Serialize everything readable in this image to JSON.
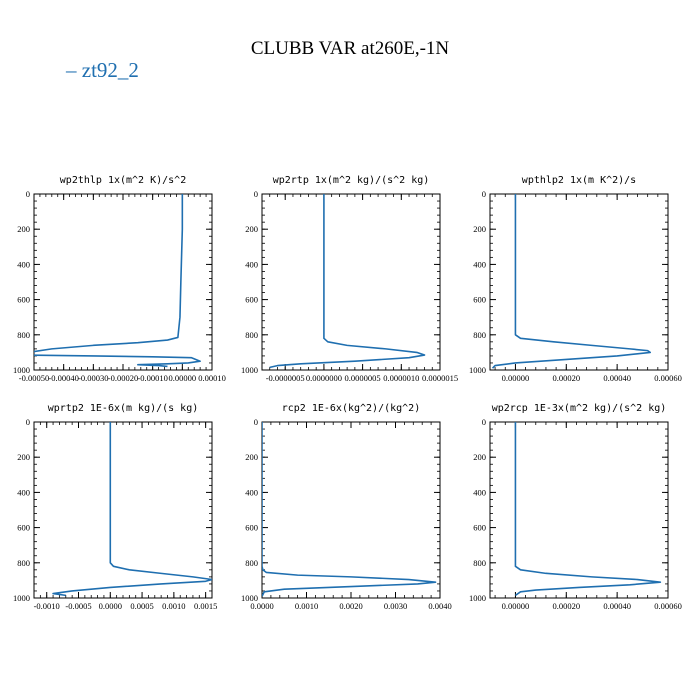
{
  "figure": {
    "title": "CLUBB VAR at260E,-1N",
    "legend": {
      "label": "zt92_2",
      "color": "#1f6fb0"
    },
    "line_color": "#1f6fb0"
  },
  "chart_data": [
    {
      "type": "line",
      "title": "wp2thlp  1x(m^2 K)/s^2",
      "xlim": [
        -0.0005,
        0.0001
      ],
      "ylim": [
        1000,
        0
      ],
      "xticks": [
        -0.0005,
        -0.0004,
        -0.0003,
        -0.0002,
        -0.0001,
        0.0,
        0.0001
      ],
      "xticklabels": [
        "-0.00050",
        "-0.00040",
        "-0.00030",
        "-0.00020",
        "-0.00010",
        "0.00000",
        "0.00010"
      ],
      "yticks": [
        0,
        200,
        400,
        600,
        800,
        1000
      ],
      "yticklabels": [
        "0",
        "200",
        "400",
        "600",
        "800",
        "1000"
      ],
      "series": [
        {
          "x": [
            0.0,
            0.0,
            -5e-06,
            -8e-06,
            -1.5e-05,
            -5e-05,
            -0.00015,
            -0.0003,
            -0.00044,
            -0.00052,
            -0.00053,
            -0.0003,
            -0.0001,
            3e-05,
            6e-05,
            2e-05,
            -5e-05,
            -0.00015,
            -8e-05,
            -5e-05
          ],
          "y": [
            0,
            200,
            500,
            700,
            815,
            830,
            845,
            860,
            880,
            900,
            915,
            920,
            925,
            930,
            950,
            960,
            965,
            970,
            975,
            980
          ]
        }
      ]
    },
    {
      "type": "line",
      "title": "wp2rtp  1x(m^2 kg)/(s^2 kg)",
      "xlim": [
        -8e-07,
        1.5e-06
      ],
      "ylim": [
        1000,
        0
      ],
      "xticks": [
        -5e-07,
        0.0,
        5e-07,
        1e-06,
        1.5e-06
      ],
      "xticklabels": [
        "-0.0000005",
        "0.0000000",
        "0.0000005",
        "0.0000010",
        "0.0000015"
      ],
      "yticks": [
        0,
        200,
        400,
        600,
        800,
        1000
      ],
      "yticklabels": [
        "0",
        "200",
        "400",
        "600",
        "800",
        "1000"
      ],
      "series": [
        {
          "x": [
            0.0,
            0.0,
            0.0,
            0.0,
            5e-08,
            3e-07,
            8e-07,
            1.2e-06,
            1.3e-06,
            1.1e-06,
            4e-07,
            -3e-07,
            -6e-07,
            -7e-07
          ],
          "y": [
            0,
            300,
            600,
            820,
            840,
            860,
            880,
            900,
            915,
            930,
            950,
            965,
            975,
            985
          ]
        }
      ]
    },
    {
      "type": "line",
      "title": "wpthlp2  1x(m K^2)/s",
      "xlim": [
        -0.0001,
        0.0006
      ],
      "ylim": [
        1000,
        0
      ],
      "xticks": [
        0.0,
        0.0002,
        0.0004,
        0.0006
      ],
      "xticklabels": [
        "0.00000",
        "0.00020",
        "0.00040",
        "0.00060"
      ],
      "yticks": [
        0,
        200,
        400,
        600,
        800,
        1000
      ],
      "yticklabels": [
        "0",
        "200",
        "400",
        "600",
        "800",
        "1000"
      ],
      "series": [
        {
          "x": [
            0.0,
            0.0,
            0.0,
            0.0,
            2e-05,
            0.00015,
            0.0003,
            0.00045,
            0.00052,
            0.00053,
            0.0004,
            0.0002,
            0.0,
            -8e-05,
            -9e-05
          ],
          "y": [
            0,
            300,
            600,
            800,
            820,
            840,
            860,
            880,
            890,
            900,
            920,
            940,
            960,
            975,
            990
          ]
        }
      ]
    },
    {
      "type": "line",
      "title": "wprtp2  1E-6x(m kg)/(s kg)",
      "xlim": [
        -0.0012,
        0.0016
      ],
      "ylim": [
        1000,
        0
      ],
      "xticks": [
        -0.001,
        -0.0005,
        0.0,
        0.0005,
        0.001,
        0.0015
      ],
      "xticklabels": [
        "-0.0010",
        "-0.0005",
        "0.0000",
        "0.0005",
        "0.0010",
        "0.0015"
      ],
      "yticks": [
        0,
        200,
        400,
        600,
        800,
        1000
      ],
      "yticklabels": [
        "0",
        "200",
        "400",
        "600",
        "800",
        "1000"
      ],
      "series": [
        {
          "x": [
            0.0,
            0.0,
            0.0,
            0.0,
            5e-05,
            0.0003,
            0.0008,
            0.0013,
            0.0016,
            0.0015,
            0.0008,
            0.0,
            -0.0006,
            -0.0009,
            -0.0007
          ],
          "y": [
            0,
            300,
            600,
            800,
            820,
            840,
            860,
            880,
            895,
            905,
            920,
            940,
            960,
            975,
            985
          ]
        }
      ]
    },
    {
      "type": "line",
      "title": "rcp2  1E-6x(kg^2)/(kg^2)",
      "xlim": [
        0.0,
        0.004
      ],
      "ylim": [
        1000,
        0
      ],
      "xticks": [
        0.0,
        0.001,
        0.002,
        0.003,
        0.004
      ],
      "xticklabels": [
        "0.0000",
        "0.0010",
        "0.0020",
        "0.0030",
        "0.0040"
      ],
      "yticks": [
        0,
        200,
        400,
        600,
        800,
        1000
      ],
      "yticklabels": [
        "0",
        "200",
        "400",
        "600",
        "800",
        "1000"
      ],
      "series": [
        {
          "x": [
            0.0,
            0.0,
            0.0,
            0.0,
            2e-05,
            0.0001,
            0.0008,
            0.002,
            0.0033,
            0.0039,
            0.0035,
            0.002,
            0.0005,
            5e-05,
            0.0
          ],
          "y": [
            0,
            300,
            600,
            820,
            840,
            855,
            870,
            880,
            895,
            910,
            920,
            935,
            950,
            965,
            990
          ]
        }
      ]
    },
    {
      "type": "line",
      "title": "wp2rcp  1E-3x(m^2 kg)/(s^2 kg)",
      "xlim": [
        -0.0001,
        0.0006
      ],
      "ylim": [
        1000,
        0
      ],
      "xticks": [
        0.0,
        0.0002,
        0.0004,
        0.0006
      ],
      "xticklabels": [
        "0.00000",
        "0.00020",
        "0.00040",
        "0.00060"
      ],
      "yticks": [
        0,
        200,
        400,
        600,
        800,
        1000
      ],
      "yticklabels": [
        "0",
        "200",
        "400",
        "600",
        "800",
        "1000"
      ],
      "series": [
        {
          "x": [
            0.0,
            0.0,
            0.0,
            0.0,
            2e-05,
            0.00012,
            0.0003,
            0.00048,
            0.00057,
            0.00045,
            0.00025,
            8e-05,
            2e-05,
            0.0
          ],
          "y": [
            0,
            300,
            600,
            820,
            840,
            860,
            880,
            895,
            910,
            925,
            940,
            955,
            965,
            985
          ]
        }
      ]
    }
  ]
}
